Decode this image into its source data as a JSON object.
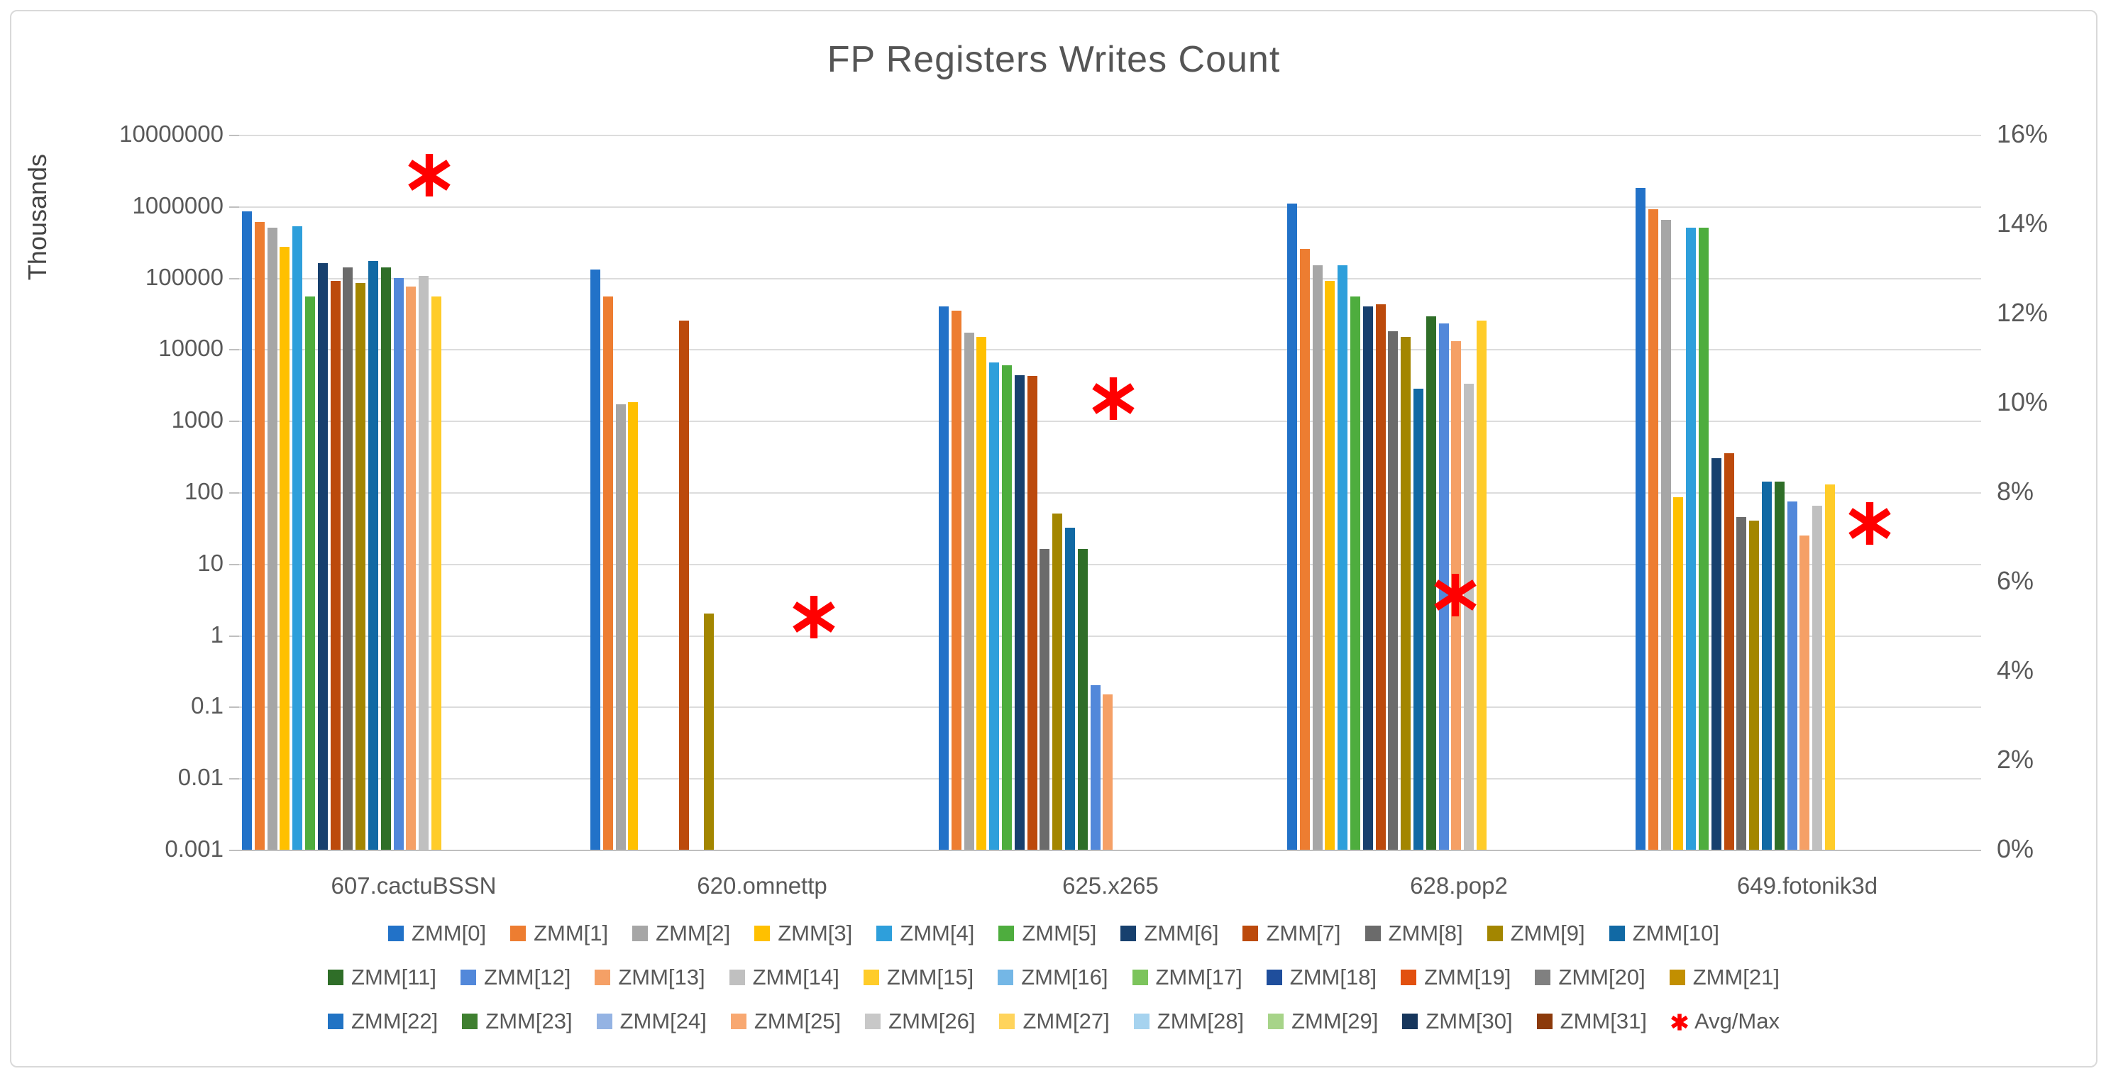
{
  "title": "FP Registers Writes Count",
  "left_axis": {
    "label": "Thousands",
    "ticks": [
      "10000000",
      "1000000",
      "100000",
      "10000",
      "1000",
      "100",
      "10",
      "1",
      "0.1",
      "0.01",
      "0.001"
    ],
    "log_min_exp": -3,
    "log_max_exp": 7
  },
  "right_axis": {
    "ticks": [
      "16%",
      "14%",
      "12%",
      "10%",
      "8%",
      "6%",
      "4%",
      "2%",
      "0%"
    ],
    "max_percent": 16
  },
  "chart_data": {
    "type": "bar",
    "subtype": "grouped-log-columns-with-marker-overlay",
    "title": "FP Registers Writes Count",
    "ylabel_left": "Thousands",
    "ylabel_right_unit": "%",
    "ylim_left_exponents": [
      -3,
      7
    ],
    "ylim_right_percent": [
      0,
      16
    ],
    "grid": "horizontal-decades",
    "legend_position": "bottom-3-rows",
    "categories": [
      "607.cactuBSSN",
      "620.omnettp",
      "625.x265",
      "628.pop2",
      "649.fotonik3d"
    ],
    "series": [
      {
        "name": "ZMM[0]",
        "color": "#2272C8",
        "values": [
          850000,
          130000,
          40000,
          1100000,
          1800000
        ]
      },
      {
        "name": "ZMM[1]",
        "color": "#ED7D31",
        "values": [
          600000,
          55000,
          35000,
          250000,
          900000
        ]
      },
      {
        "name": "ZMM[2]",
        "color": "#A6A6A6",
        "values": [
          500000,
          1700,
          17000,
          150000,
          650000
        ]
      },
      {
        "name": "ZMM[3]",
        "color": "#FFC000",
        "values": [
          270000,
          1800,
          15000,
          90000,
          85
        ]
      },
      {
        "name": "ZMM[4]",
        "color": "#2E9FDB",
        "values": [
          520000,
          null,
          6500,
          150000,
          500000
        ]
      },
      {
        "name": "ZMM[5]",
        "color": "#4EAD3E",
        "values": [
          55000,
          null,
          6000,
          55000,
          500000
        ]
      },
      {
        "name": "ZMM[6]",
        "color": "#17406E",
        "values": [
          160000,
          null,
          4300,
          40000,
          300
        ]
      },
      {
        "name": "ZMM[7]",
        "color": "#BC4A0C",
        "values": [
          90000,
          25000,
          4200,
          43000,
          350
        ]
      },
      {
        "name": "ZMM[8]",
        "color": "#6B6B6B",
        "values": [
          140000,
          null,
          16,
          18000,
          45
        ]
      },
      {
        "name": "ZMM[9]",
        "color": "#A38600",
        "values": [
          85000,
          2,
          50,
          15000,
          40
        ]
      },
      {
        "name": "ZMM[10]",
        "color": "#1169A4",
        "values": [
          170000,
          null,
          32,
          2800,
          140
        ]
      },
      {
        "name": "ZMM[11]",
        "color": "#2F6E28",
        "values": [
          140000,
          null,
          16,
          29000,
          140
        ]
      },
      {
        "name": "ZMM[12]",
        "color": "#5288DA",
        "values": [
          100000,
          null,
          0.2,
          23000,
          75
        ]
      },
      {
        "name": "ZMM[13]",
        "color": "#F5A066",
        "values": [
          75000,
          null,
          0.15,
          13000,
          25
        ]
      },
      {
        "name": "ZMM[14]",
        "color": "#C0C0C0",
        "values": [
          105000,
          null,
          null,
          3300,
          65
        ]
      },
      {
        "name": "ZMM[15]",
        "color": "#FFCC29",
        "values": [
          55000,
          null,
          null,
          25000,
          130
        ]
      },
      {
        "name": "ZMM[16]",
        "color": "#74B7E6",
        "values": [
          null,
          null,
          null,
          null,
          null
        ]
      },
      {
        "name": "ZMM[17]",
        "color": "#7CC45C",
        "values": [
          null,
          null,
          null,
          null,
          null
        ]
      },
      {
        "name": "ZMM[18]",
        "color": "#1F4E9C",
        "values": [
          null,
          null,
          null,
          null,
          null
        ]
      },
      {
        "name": "ZMM[19]",
        "color": "#E2500F",
        "values": [
          null,
          null,
          null,
          null,
          null
        ]
      },
      {
        "name": "ZMM[20]",
        "color": "#808080",
        "values": [
          null,
          null,
          null,
          null,
          null
        ]
      },
      {
        "name": "ZMM[21]",
        "color": "#C28F00",
        "values": [
          null,
          null,
          null,
          null,
          null
        ]
      },
      {
        "name": "ZMM[22]",
        "color": "#2173C4",
        "values": [
          null,
          null,
          null,
          null,
          null
        ]
      },
      {
        "name": "ZMM[23]",
        "color": "#3F8030",
        "values": [
          null,
          null,
          null,
          null,
          null
        ]
      },
      {
        "name": "ZMM[24]",
        "color": "#94B3E3",
        "values": [
          null,
          null,
          null,
          null,
          null
        ]
      },
      {
        "name": "ZMM[25]",
        "color": "#F8A871",
        "values": [
          null,
          null,
          null,
          null,
          null
        ]
      },
      {
        "name": "ZMM[26]",
        "color": "#C8C8C8",
        "values": [
          null,
          null,
          null,
          null,
          null
        ]
      },
      {
        "name": "ZMM[27]",
        "color": "#FFD45C",
        "values": [
          null,
          null,
          null,
          null,
          null
        ]
      },
      {
        "name": "ZMM[28]",
        "color": "#A6D3EF",
        "values": [
          null,
          null,
          null,
          null,
          null
        ]
      },
      {
        "name": "ZMM[29]",
        "color": "#A7D489",
        "values": [
          null,
          null,
          null,
          null,
          null
        ]
      },
      {
        "name": "ZMM[30]",
        "color": "#16365C",
        "values": [
          null,
          null,
          null,
          null,
          null
        ]
      },
      {
        "name": "ZMM[31]",
        "color": "#8C3A0B",
        "values": [
          null,
          null,
          null,
          null,
          null
        ]
      }
    ],
    "avg_max": {
      "name": "Avg/Max",
      "color": "#FF0000",
      "axis": "right-percent",
      "percent_values": [
        15.1,
        5.2,
        10.1,
        5.7,
        7.3
      ]
    }
  }
}
